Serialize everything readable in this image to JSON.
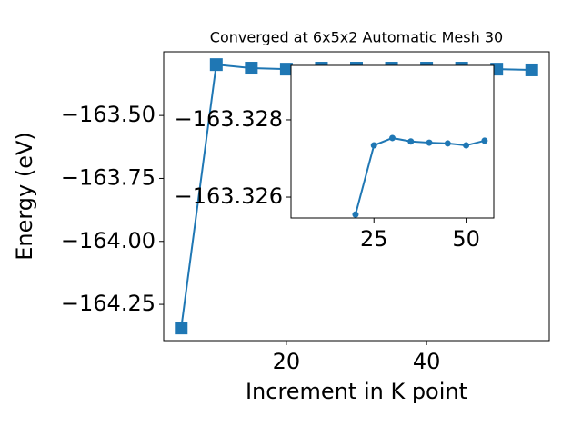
{
  "chart_data": [
    {
      "type": "line",
      "title": "Converged at 6x5x2 Automatic Mesh 30",
      "x_label": "Increment in K point",
      "y_label": "Energy (eV)",
      "x": [
        5,
        10,
        15,
        20,
        25,
        30,
        35,
        40,
        45,
        50,
        55
      ],
      "series": [
        {
          "name": "main",
          "color": "#1f77b4",
          "marker": "square",
          "values": [
            -164.344,
            -163.298,
            -163.312,
            -163.316,
            -163.312,
            -163.312,
            -163.312,
            -163.312,
            -163.312,
            -163.316,
            -163.319
          ]
        }
      ],
      "xlim": [
        2.5,
        57.5
      ],
      "ylim": [
        -164.394,
        -163.247
      ],
      "xticks": [
        20,
        40
      ],
      "yticks": [
        {
          "value": -164.25,
          "label": "−164.25"
        },
        {
          "value": -164.0,
          "label": "−164.00"
        },
        {
          "value": -163.75,
          "label": "−163.75"
        },
        {
          "value": -163.5,
          "label": "−163.50"
        }
      ]
    },
    {
      "type": "line",
      "x": [
        20,
        25,
        30,
        35,
        40,
        45,
        50,
        55
      ],
      "series": [
        {
          "name": "inset",
          "color": "#1f77b4",
          "marker": "circle",
          "values": [
            -163.32555,
            -163.32734,
            -163.32753,
            -163.32744,
            -163.32741,
            -163.32739,
            -163.32734,
            -163.32746
          ]
        }
      ],
      "xlim": [
        2.5,
        57.5
      ],
      "ylim": [
        -163.32546,
        -163.32941
      ],
      "xticks": [
        25,
        50
      ],
      "yticks": [
        {
          "value": -163.326,
          "label": "−163.326"
        },
        {
          "value": -163.328,
          "label": "−163.328"
        }
      ]
    }
  ]
}
